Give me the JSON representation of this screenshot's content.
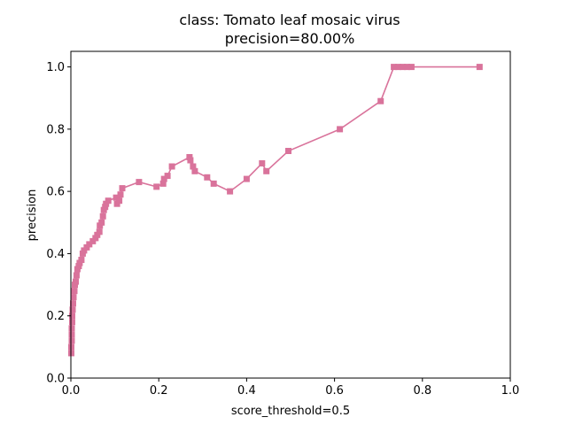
{
  "chart_data": {
    "type": "line",
    "title_line1": "class: Tomato leaf mosaic virus",
    "title_line2": "precision=80.00%",
    "xlabel": "score_threshold=0.5",
    "ylabel": "precision",
    "xlim": [
      0,
      1
    ],
    "ylim": [
      0,
      1.05
    ],
    "x_ticks": [
      "0.0",
      "0.2",
      "0.4",
      "0.6",
      "0.8",
      "1.0"
    ],
    "y_ticks": [
      "0.0",
      "0.2",
      "0.4",
      "0.6",
      "0.8",
      "1.0"
    ],
    "grid": false,
    "legend": "none",
    "series_color": "#d9739b",
    "marker": "square",
    "points": [
      [
        0.001,
        0.08
      ],
      [
        0.001,
        0.1
      ],
      [
        0.002,
        0.12
      ],
      [
        0.002,
        0.14
      ],
      [
        0.002,
        0.16
      ],
      [
        0.003,
        0.18
      ],
      [
        0.003,
        0.2
      ],
      [
        0.004,
        0.22
      ],
      [
        0.005,
        0.24
      ],
      [
        0.006,
        0.26
      ],
      [
        0.008,
        0.28
      ],
      [
        0.009,
        0.3
      ],
      [
        0.011,
        0.31
      ],
      [
        0.013,
        0.33
      ],
      [
        0.015,
        0.35
      ],
      [
        0.018,
        0.36
      ],
      [
        0.02,
        0.37
      ],
      [
        0.024,
        0.38
      ],
      [
        0.027,
        0.4
      ],
      [
        0.03,
        0.41
      ],
      [
        0.036,
        0.42
      ],
      [
        0.042,
        0.43
      ],
      [
        0.05,
        0.44
      ],
      [
        0.056,
        0.45
      ],
      [
        0.06,
        0.46
      ],
      [
        0.065,
        0.47
      ],
      [
        0.066,
        0.49
      ],
      [
        0.07,
        0.5
      ],
      [
        0.073,
        0.52
      ],
      [
        0.075,
        0.54
      ],
      [
        0.078,
        0.55
      ],
      [
        0.08,
        0.56
      ],
      [
        0.085,
        0.57
      ],
      [
        0.103,
        0.58
      ],
      [
        0.105,
        0.56
      ],
      [
        0.11,
        0.57
      ],
      [
        0.113,
        0.59
      ],
      [
        0.117,
        0.61
      ],
      [
        0.155,
        0.63
      ],
      [
        0.195,
        0.615
      ],
      [
        0.21,
        0.625
      ],
      [
        0.212,
        0.64
      ],
      [
        0.22,
        0.65
      ],
      [
        0.23,
        0.68
      ],
      [
        0.27,
        0.71
      ],
      [
        0.272,
        0.7
      ],
      [
        0.278,
        0.68
      ],
      [
        0.282,
        0.665
      ],
      [
        0.31,
        0.645
      ],
      [
        0.325,
        0.625
      ],
      [
        0.362,
        0.6
      ],
      [
        0.4,
        0.64
      ],
      [
        0.435,
        0.69
      ],
      [
        0.445,
        0.665
      ],
      [
        0.495,
        0.73
      ],
      [
        0.612,
        0.8
      ],
      [
        0.705,
        0.89
      ],
      [
        0.735,
        1.0
      ],
      [
        0.745,
        1.0
      ],
      [
        0.755,
        1.0
      ],
      [
        0.765,
        1.0
      ],
      [
        0.775,
        1.0
      ],
      [
        0.93,
        1.0
      ]
    ]
  }
}
